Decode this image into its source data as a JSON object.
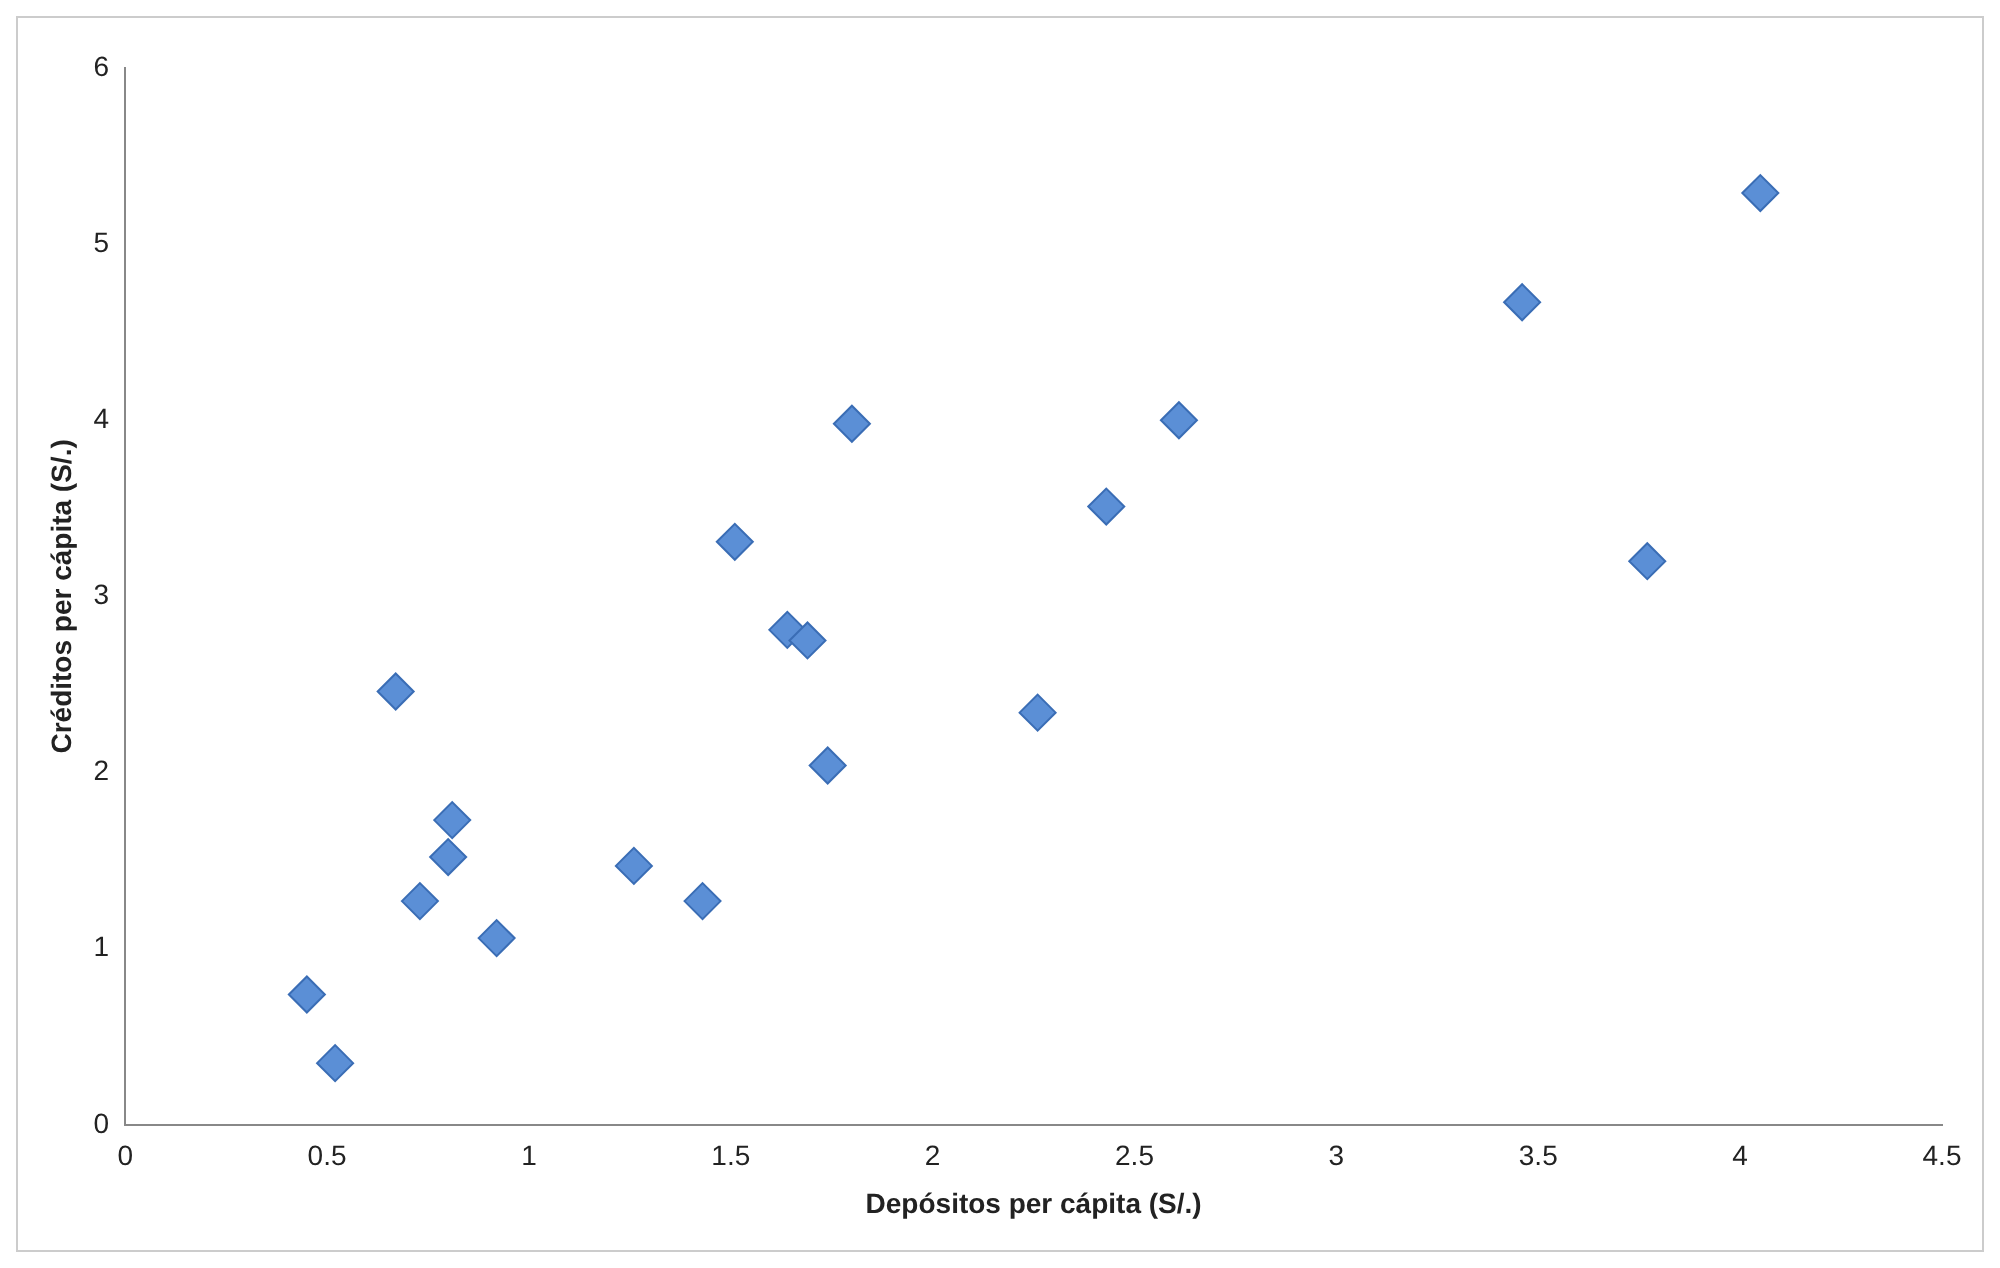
{
  "chart_data": {
    "type": "scatter",
    "xlabel": "Depósitos per cápita (S/.)",
    "ylabel": "Créditos per cápita (S/.)",
    "x": [
      0.45,
      0.52,
      0.67,
      0.73,
      0.8,
      0.81,
      0.92,
      1.26,
      1.43,
      1.51,
      1.64,
      1.69,
      1.74,
      1.8,
      2.26,
      2.43,
      2.61,
      3.46,
      3.77,
      4.05
    ],
    "values": [
      0.74,
      0.35,
      2.46,
      1.27,
      1.52,
      1.73,
      1.06,
      1.47,
      1.27,
      3.31,
      2.81,
      2.75,
      2.04,
      3.98,
      2.34,
      3.51,
      4.0,
      4.67,
      3.2,
      5.29
    ],
    "color": "#5b8fd6",
    "marker": "diamond",
    "grid": false,
    "legend": false,
    "xlim": [
      0,
      4.5
    ],
    "xticks": [
      0,
      0.5,
      1,
      1.5,
      2,
      2.5,
      3,
      3.5,
      4,
      4.5
    ],
    "ylim": [
      0,
      6
    ],
    "yticks": [
      0,
      1,
      2,
      3,
      4,
      5,
      6
    ]
  }
}
